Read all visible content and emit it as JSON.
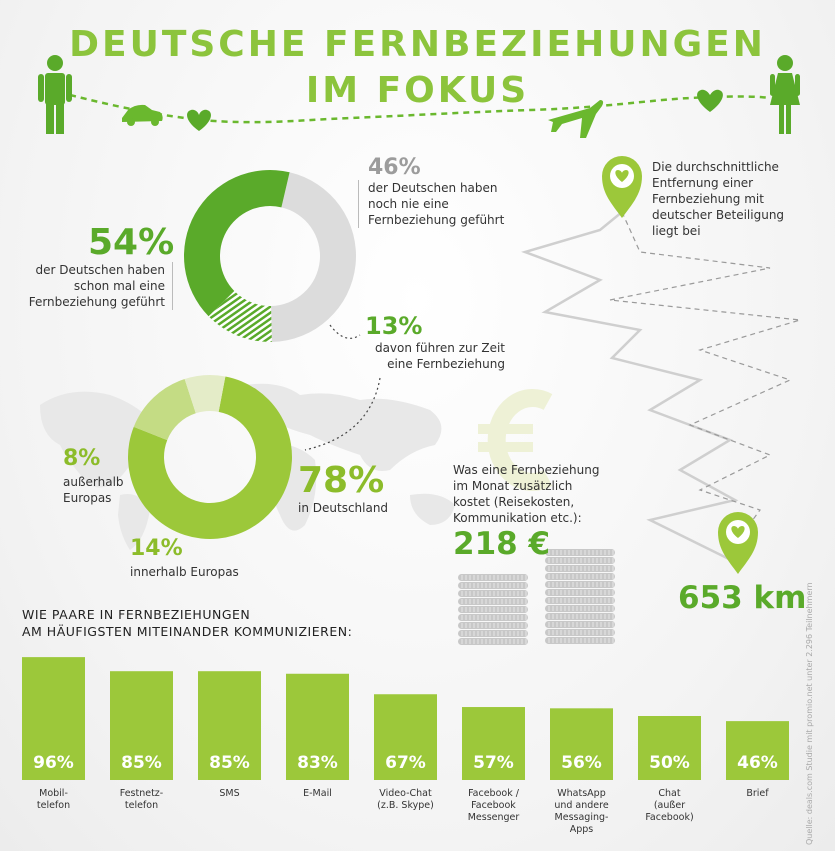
{
  "title": {
    "line1": "DEUTSCHE FERNBEZIEHUNGEN",
    "line2": "IM FOKUS"
  },
  "stats": {
    "never_pct": "46%",
    "never_text": [
      "der Deutschen haben",
      "noch nie eine",
      "Fernbeziehung geführt"
    ],
    "ever_pct": "54%",
    "ever_text": [
      "der Deutschen haben",
      "schon mal eine",
      "Fernbeziehung geführt"
    ],
    "current_pct": "13%",
    "current_text": [
      "davon führen zur Zeit",
      "eine Fernbeziehung"
    ],
    "outside_pct": "8%",
    "outside_text": [
      "außerhalb",
      "Europas"
    ],
    "inside_pct": "14%",
    "inside_text": "innerhalb Europas",
    "de_pct": "78%",
    "de_text": "in Deutschland",
    "distance_text": [
      "Die durchschnittliche",
      "Entfernung einer",
      "Fernbeziehung mit",
      "deutscher Beteiligung",
      "liegt bei"
    ],
    "distance_value": "653 km",
    "cost_text": [
      "Was eine Fernbeziehung",
      "im Monat zusätzlich",
      "kostet (Reisekosten,",
      "Kommunikation etc.):"
    ],
    "cost_value": "218 €"
  },
  "colors": {
    "green": "#5aaa2a",
    "lime": "#9cc83a",
    "pale": "#c4dc84",
    "grey": "#dcdcdc",
    "dark_grey": "#9c9c9c"
  },
  "icons": [
    "man-icon",
    "car-icon",
    "heart-icon",
    "plane-icon",
    "woman-icon",
    "location-pin-icon",
    "euro-icon",
    "coin-stack-icon",
    "world-map-icon"
  ],
  "chart_data": [
    {
      "type": "pie",
      "categories": [
        "schon mal eine Fernbeziehung geführt",
        "noch nie eine Fernbeziehung geführt",
        "davon führen zur Zeit eine Fernbeziehung"
      ],
      "values": [
        54,
        46,
        13
      ]
    },
    {
      "type": "pie",
      "categories": [
        "in Deutschland",
        "innerhalb Europas",
        "außerhalb Europas"
      ],
      "values": [
        78,
        14,
        8
      ]
    },
    {
      "type": "bar",
      "title": "WIE PAARE IN FERNBEZIEHUNGEN AM HÄUFIGSTEN MITEINANDER KOMMUNIZIEREN:",
      "title_lines": [
        "WIE PAARE IN FERNBEZIEHUNGEN",
        "AM HÄUFIGSTEN MITEINANDER KOMMUNIZIEREN:"
      ],
      "categories": [
        [
          "Mobil-",
          "telefon"
        ],
        [
          "Festnetz-",
          "telefon"
        ],
        [
          "SMS"
        ],
        [
          "E-Mail"
        ],
        [
          "Video-Chat",
          "(z.B. Skype)"
        ],
        [
          "Facebook /",
          "Facebook",
          "Messenger"
        ],
        [
          "WhatsApp",
          "und andere",
          "Messaging-",
          "Apps"
        ],
        [
          "Chat",
          "(außer",
          "Facebook)"
        ],
        [
          "Brief"
        ]
      ],
      "values": [
        96,
        85,
        85,
        83,
        67,
        57,
        56,
        50,
        46
      ],
      "labels": [
        "96%",
        "85%",
        "85%",
        "83%",
        "67%",
        "57%",
        "56%",
        "50%",
        "46%"
      ],
      "ylim": [
        0,
        100
      ]
    }
  ],
  "source": "Quelle: deals.com Studie mit promio.net unter 2.296 Teilnehmern"
}
